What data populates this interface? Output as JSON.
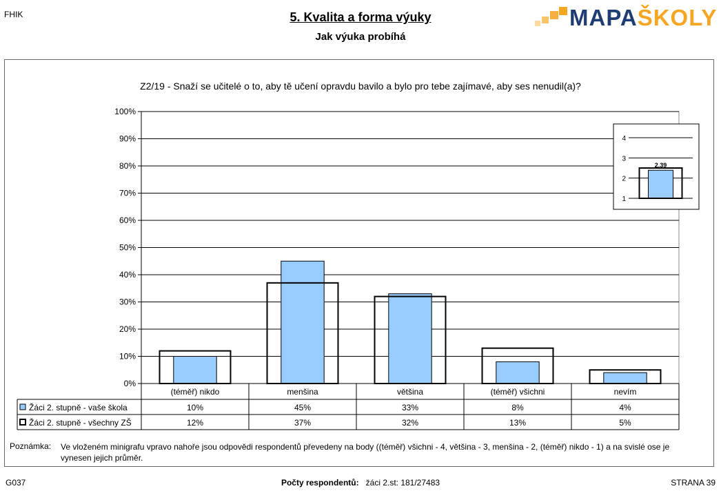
{
  "header": {
    "corner_left": "FHIK",
    "title": "5. Kvalita a forma výuky",
    "subtitle": "Jak výuka probíhá"
  },
  "logo": {
    "text_mapa": "MAPA",
    "text_skoly": "ŠKOLY"
  },
  "colors": {
    "school_bar": "#99ccff",
    "logo_blue": "#1f3d73",
    "logo_orange": "#f5a623"
  },
  "question": "Z2/19 - Snaží se učitelé o to, aby tě učení opravdu bavilo a bylo pro tebe zajímavé, aby ses nenudil(a)?",
  "chart_data": {
    "type": "bar",
    "categories": [
      "(téměř) nikdo",
      "menšina",
      "většina",
      "(téměř) všichni",
      "nevím"
    ],
    "series": [
      {
        "name": "Žáci 2. stupně - vaše škola",
        "values": [
          10,
          45,
          33,
          8,
          4
        ],
        "labels": [
          "10%",
          "45%",
          "33%",
          "8%",
          "4%"
        ],
        "style": "filled"
      },
      {
        "name": "Žáci 2. stupně - všechny ZŠ",
        "values": [
          12,
          37,
          32,
          13,
          5
        ],
        "labels": [
          "12%",
          "37%",
          "32%",
          "13%",
          "5%"
        ],
        "style": "outline"
      }
    ],
    "ylim": [
      0,
      100
    ],
    "yticks": [
      "0%",
      "10%",
      "20%",
      "30%",
      "40%",
      "50%",
      "60%",
      "70%",
      "80%",
      "90%",
      "100%"
    ],
    "grid": true,
    "legend_placement": "data table below chart",
    "mini_chart": {
      "type": "bar",
      "ylim": [
        1,
        4
      ],
      "yticks": [
        "1",
        "2",
        "3",
        "4"
      ],
      "school_value": 2.39,
      "school_label": "2.39",
      "all_value": 2.5
    }
  },
  "note": {
    "label": "Poznámka:",
    "text": "Ve vloženém minigrafu vpravo nahoře jsou odpovědi respondentů převedeny na body ((téměř) všichni - 4, většina - 3, menšina - 2, (téměř) nikdo - 1) a na svislé ose je vynesen jejich průměr."
  },
  "footer": {
    "left": "G037",
    "respondents_label": "Počty respondentů:",
    "respondents_value": "žáci 2.st: 181/27483",
    "right": "STRANA 39"
  }
}
